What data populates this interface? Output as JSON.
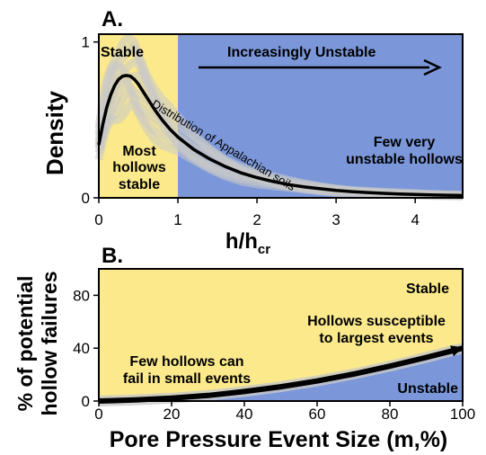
{
  "colors": {
    "stable": "#fbe98c",
    "unstable": "#7b97d9",
    "curve": "#000000",
    "spread": "#c8c8c8",
    "text": "#000000"
  },
  "chart_data": [
    {
      "panel": "A.",
      "type": "area",
      "xlabel_main": "h/h",
      "xlabel_sub": "cr",
      "ylabel": "Density",
      "xlim": [
        0,
        4.6
      ],
      "ylim": [
        0,
        1.05
      ],
      "xticks": [
        "0",
        "1",
        "2",
        "3",
        "4"
      ],
      "yticks": [
        "0",
        "1"
      ],
      "regions": [
        {
          "name": "Stable",
          "from": 0,
          "to": 1
        },
        {
          "name": "Increasingly Unstable",
          "from": 1,
          "to": 4.6
        }
      ],
      "series": [
        {
          "name": "Distribution of Appalachian soils",
          "x": [
            0,
            0.05,
            0.1,
            0.15,
            0.2,
            0.25,
            0.3,
            0.35,
            0.4,
            0.45,
            0.5,
            0.6,
            0.7,
            0.8,
            0.9,
            1.0,
            1.2,
            1.4,
            1.6,
            1.8,
            2.0,
            2.2,
            2.4,
            2.6,
            2.8,
            3.0,
            3.2,
            3.4,
            3.6,
            3.8,
            4.0,
            4.2,
            4.4,
            4.6
          ],
          "y": [
            0.34,
            0.47,
            0.58,
            0.66,
            0.72,
            0.76,
            0.78,
            0.785,
            0.78,
            0.76,
            0.73,
            0.65,
            0.57,
            0.5,
            0.44,
            0.39,
            0.31,
            0.25,
            0.2,
            0.16,
            0.13,
            0.105,
            0.085,
            0.07,
            0.058,
            0.048,
            0.04,
            0.034,
            0.029,
            0.025,
            0.022,
            0.019,
            0.017,
            0.015
          ]
        }
      ],
      "annotations": {
        "stable": "Stable",
        "unstable_arrow": "Increasingly Unstable",
        "most_stable_1": "Most",
        "most_stable_2": "hollows",
        "most_stable_3": "stable",
        "few_unstable_1": "Few very",
        "few_unstable_2": "unstable hollows",
        "curve_label": "Distribution of Appalachian soils"
      }
    },
    {
      "panel": "B.",
      "type": "area",
      "xlabel": "Pore Pressure Event Size (m,%)",
      "ylabel_1": "% of potential",
      "ylabel_2": "hollow failures",
      "xlim": [
        0,
        100
      ],
      "ylim": [
        0,
        100
      ],
      "xticks": [
        "0",
        "20",
        "40",
        "60",
        "80",
        "100"
      ],
      "yticks": [
        "0",
        "40",
        "80"
      ],
      "series": [
        {
          "name": "boundary",
          "x": [
            0,
            10,
            20,
            30,
            40,
            50,
            60,
            70,
            80,
            90,
            100
          ],
          "y": [
            0,
            0.8,
            2.2,
            4.2,
            7.2,
            10.8,
            15.2,
            20.4,
            26.4,
            33,
            40
          ]
        }
      ],
      "annotations": {
        "stable": "Stable",
        "unstable": "Unstable",
        "susceptible_1": "Hollows susceptible",
        "susceptible_2": "to largest events",
        "few_1": "Few hollows can",
        "few_2": "fail in small events"
      }
    }
  ]
}
